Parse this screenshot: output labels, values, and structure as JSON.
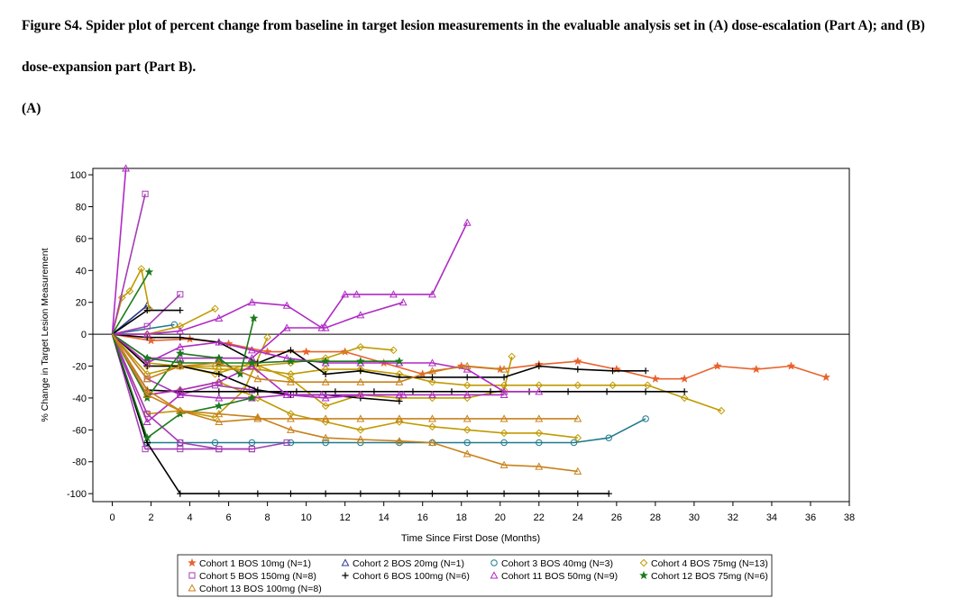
{
  "figure": {
    "caption": "Figure S4. Spider plot of percent change from baseline in target lesion measurements in the evaluable analysis set in (A) dose-escalation (Part A); and (B) dose-expansion part (Part B).",
    "panel_label": "(A)"
  },
  "chart_data": {
    "type": "line",
    "title": "",
    "xlabel": "Time Since First Dose (Months)",
    "ylabel": "% Change in Target Lesion Measurement",
    "xlim": [
      -1,
      38
    ],
    "ylim": [
      -105,
      104
    ],
    "xticks": [
      0,
      2,
      4,
      6,
      8,
      10,
      12,
      14,
      16,
      18,
      20,
      22,
      24,
      26,
      28,
      30,
      32,
      34,
      36,
      38
    ],
    "yticks": [
      100,
      80,
      60,
      40,
      20,
      0,
      -20,
      -40,
      -60,
      -80,
      -100
    ],
    "reference_line_y": 0,
    "grid": false,
    "legend_position": "bottom",
    "legend": [
      {
        "label": "Cohort 1 BOS 10mg (N=1)",
        "marker": "star",
        "color": "#e8622c"
      },
      {
        "label": "Cohort 2 BOS 20mg (N=1)",
        "marker": "triangle",
        "color": "#2b3990"
      },
      {
        "label": "Cohort 3 BOS 40mg (N=3)",
        "marker": "circle",
        "color": "#1f7a8c"
      },
      {
        "label": "Cohort 4 BOS 75mg (N=13)",
        "marker": "diamond",
        "color": "#c09a00"
      },
      {
        "label": "Cohort 5 BOS 150mg (N=8)",
        "marker": "square",
        "color": "#a43cb5"
      },
      {
        "label": "Cohort 6 BOS 100mg (N=6)",
        "marker": "plus",
        "color": "#000000"
      },
      {
        "label": "Cohort 11 BOS 50mg (N=9)",
        "marker": "triangle",
        "color": "#b02ac4"
      },
      {
        "label": "Cohort 12 BOS 75mg (N=6)",
        "marker": "star",
        "color": "#1b7a1b"
      },
      {
        "label": "Cohort 13 BOS 100mg (N=8)",
        "marker": "triangle",
        "color": "#c8811a"
      }
    ],
    "series": [
      {
        "cohort": 1,
        "x": [
          0,
          2,
          4,
          6,
          8,
          10,
          12,
          14,
          16,
          18,
          20,
          22,
          24,
          26,
          28,
          29.5,
          31.2,
          33.2,
          35,
          36.8
        ],
        "y": [
          0,
          -4,
          -3,
          -6,
          -11,
          -11,
          -11,
          -18,
          -25,
          -20,
          -22,
          -19,
          -17,
          -22,
          -28,
          -28,
          -20,
          -22,
          -20,
          -27
        ]
      },
      {
        "cohort": 2,
        "x": [
          0,
          1.8
        ],
        "y": [
          0,
          18
        ]
      },
      {
        "cohort": 3,
        "x": [
          0,
          1.8,
          3.5,
          5.3,
          7.2,
          9.2,
          11,
          12.8,
          14.8,
          16.5,
          18.3,
          20.2,
          22,
          23.8,
          25.6,
          27.5
        ],
        "y": [
          0,
          -68,
          -68,
          -68,
          -68,
          -68,
          -68,
          -68,
          -68,
          -68,
          -68,
          -68,
          -68,
          -68,
          -65,
          -53
        ]
      },
      {
        "cohort": 3,
        "x": [
          0,
          3.2
        ],
        "y": [
          0,
          6
        ]
      },
      {
        "cohort": 4,
        "x": [
          0,
          0.5,
          0.9,
          1.5,
          1.9
        ],
        "y": [
          0,
          23,
          27,
          41,
          16
        ]
      },
      {
        "cohort": 4,
        "x": [
          0,
          1.8,
          3.5,
          5.3
        ],
        "y": [
          0,
          0,
          5,
          16
        ]
      },
      {
        "cohort": 4,
        "x": [
          0,
          1.8,
          3.5,
          5.5,
          7.5,
          9.2,
          11,
          12.8,
          14.8,
          16.5,
          18.3,
          20.2,
          22,
          24,
          25.8,
          27.6,
          29.5,
          31.4
        ],
        "y": [
          0,
          -18,
          -20,
          -22,
          -22,
          -25,
          -22,
          -22,
          -25,
          -30,
          -32,
          -32,
          -32,
          -32,
          -32,
          -32,
          -40,
          -48
        ]
      },
      {
        "cohort": 4,
        "x": [
          0,
          1.8,
          3.5,
          5.3,
          7.2,
          9.2,
          11,
          12.8,
          14.8,
          16.5,
          18.3,
          20.2,
          20.6
        ],
        "y": [
          0,
          -25,
          -20,
          -25,
          -18,
          -28,
          -45,
          -38,
          -40,
          -40,
          -40,
          -35,
          -14
        ]
      },
      {
        "cohort": 4,
        "x": [
          0,
          1.8,
          3.5,
          5.3,
          7.2,
          9.2,
          11,
          12.8,
          14.5
        ],
        "y": [
          0,
          -20,
          -20,
          -20,
          -20,
          -18,
          -15,
          -8,
          -10
        ]
      },
      {
        "cohort": 4,
        "x": [
          0,
          1.8,
          3.5,
          5.3,
          6.8,
          8
        ],
        "y": [
          0,
          -50,
          -48,
          -52,
          -35,
          -2
        ]
      },
      {
        "cohort": 4,
        "x": [
          0,
          1.8,
          3.5,
          5.5,
          7.5,
          9.2,
          11,
          12.8,
          14.8,
          16.5,
          18.3,
          20.2,
          22,
          24
        ],
        "y": [
          0,
          -38,
          -35,
          -30,
          -40,
          -50,
          -55,
          -60,
          -55,
          -58,
          -60,
          -62,
          -62,
          -65
        ]
      },
      {
        "cohort": 5,
        "x": [
          0,
          1.7
        ],
        "y": [
          0,
          88
        ]
      },
      {
        "cohort": 5,
        "x": [
          0,
          1.7,
          3.5,
          5.5,
          7.2,
          9
        ],
        "y": [
          0,
          -72,
          -72,
          -72,
          -72,
          -68
        ]
      },
      {
        "cohort": 5,
        "x": [
          0,
          1.8,
          3.5
        ],
        "y": [
          0,
          5,
          25
        ]
      },
      {
        "cohort": 5,
        "x": [
          0,
          1.8,
          3.5,
          5.5,
          7.2
        ],
        "y": [
          0,
          -50,
          -68,
          -72,
          -72
        ]
      },
      {
        "cohort": 5,
        "x": [
          0,
          1.8,
          3.5,
          5.3,
          7.2,
          9.2
        ],
        "y": [
          0,
          -28,
          -38,
          -32,
          -35,
          -38
        ]
      },
      {
        "cohort": 6,
        "x": [
          0,
          1.8,
          3.5,
          5.5,
          7.5,
          9.2,
          11,
          12.8,
          14.8,
          16.5,
          18.3,
          20.2,
          22,
          24,
          25.6
        ],
        "y": [
          0,
          -68,
          -100,
          -100,
          -100,
          -100,
          -100,
          -100,
          -100,
          -100,
          -100,
          -100,
          -100,
          -100,
          -100
        ]
      },
      {
        "cohort": 6,
        "x": [
          0,
          1.8,
          3.5,
          5.5,
          7.5,
          9.2,
          11,
          12.8,
          14.8,
          16.5,
          18.3,
          20.2,
          22,
          24,
          25.8,
          27.5
        ],
        "y": [
          0,
          -2,
          -2,
          -5,
          -18,
          -10,
          -25,
          -23,
          -27,
          -27,
          -27,
          -27,
          -20,
          -22,
          -23,
          -23
        ]
      },
      {
        "cohort": 6,
        "x": [
          0,
          1.8,
          3.5,
          5.5,
          7.5,
          9.2,
          11,
          12.8,
          14.8
        ],
        "y": [
          0,
          -20,
          -20,
          -25,
          -35,
          -38,
          -38,
          -40,
          -42
        ]
      },
      {
        "cohort": 6,
        "x": [
          0,
          1.8,
          3.5,
          5.5,
          7.5,
          9.5,
          11.5,
          13.5,
          15.5,
          17.5,
          19.5,
          21.5,
          23.5,
          25.5,
          27.5,
          29.5
        ],
        "y": [
          0,
          -35,
          -36,
          -36,
          -36,
          -36,
          -36,
          -36,
          -36,
          -36,
          -36,
          -36,
          -36,
          -36,
          -36,
          -36
        ]
      },
      {
        "cohort": 6,
        "x": [
          0,
          1.8,
          3.5
        ],
        "y": [
          0,
          15,
          15
        ]
      },
      {
        "cohort": 11,
        "x": [
          0,
          0.7
        ],
        "y": [
          0,
          104
        ]
      },
      {
        "cohort": 11,
        "x": [
          0,
          1.8,
          3.5,
          5.5,
          7.2,
          9,
          10.8,
          12,
          12.6,
          14.5,
          16.5,
          18.3
        ],
        "y": [
          0,
          0,
          2,
          10,
          20,
          18,
          4,
          25,
          25,
          25,
          25,
          70
        ]
      },
      {
        "cohort": 11,
        "x": [
          0,
          1.8,
          3.5,
          5.5,
          7.2,
          9,
          10.8,
          12.8,
          15
        ],
        "y": [
          0,
          -55,
          -38,
          -40,
          -40,
          -38,
          -38,
          -38,
          -38
        ]
      },
      {
        "cohort": 11,
        "x": [
          0,
          1.8,
          3.5,
          5.5,
          7.2,
          9,
          11,
          12.8,
          14.8,
          16.5,
          18.3,
          20.2,
          22
        ],
        "y": [
          0,
          -18,
          -8,
          -5,
          -10,
          -15,
          -18,
          -18,
          -18,
          -18,
          -22,
          -36,
          -36
        ]
      },
      {
        "cohort": 11,
        "x": [
          0,
          1.8,
          3.5,
          5.5,
          7.2,
          9,
          11,
          12.8,
          14.8,
          16.5,
          18.3,
          20.2
        ],
        "y": [
          0,
          -38,
          -35,
          -30,
          -20,
          -38,
          -40,
          -38,
          -38,
          -38,
          -38,
          -38
        ]
      },
      {
        "cohort": 11,
        "x": [
          0,
          1.8,
          3.5,
          5.5,
          7.2,
          9,
          11,
          12.8,
          15
        ],
        "y": [
          0,
          -15,
          -15,
          -15,
          -15,
          4,
          4,
          12,
          20
        ]
      },
      {
        "cohort": 12,
        "x": [
          0,
          1.8,
          3.5,
          5.5,
          7.2
        ],
        "y": [
          0,
          -65,
          -50,
          -45,
          -40
        ]
      },
      {
        "cohort": 12,
        "x": [
          0,
          1.9
        ],
        "y": [
          0,
          39
        ]
      },
      {
        "cohort": 12,
        "x": [
          0,
          1.8,
          3.5,
          5.5,
          6.6,
          7.3
        ],
        "y": [
          0,
          -40,
          -12,
          -15,
          -25,
          10
        ]
      },
      {
        "cohort": 12,
        "x": [
          0,
          1.8,
          3.5,
          5.5,
          7.2,
          9.2,
          11,
          12.8,
          14.8
        ],
        "y": [
          0,
          -15,
          -18,
          -18,
          -18,
          -17,
          -17,
          -17,
          -17
        ]
      },
      {
        "cohort": 13,
        "x": [
          0,
          1.8,
          3.5,
          5.5,
          7.5,
          9.2,
          11,
          12.8,
          14.8,
          16.5,
          18.3,
          20.2,
          22,
          24
        ],
        "y": [
          0,
          -38,
          -48,
          -55,
          -53,
          -53,
          -53,
          -53,
          -53,
          -53,
          -53,
          -53,
          -53,
          -53
        ]
      },
      {
        "cohort": 13,
        "x": [
          0,
          1.8,
          3.5,
          5.5,
          7.5,
          9.2,
          11,
          12.8,
          14.8,
          16.5,
          18.3,
          20.2,
          22,
          24
        ],
        "y": [
          0,
          -35,
          -48,
          -50,
          -52,
          -60,
          -65,
          -66,
          -67,
          -68,
          -75,
          -82,
          -83,
          -86
        ]
      },
      {
        "cohort": 13,
        "x": [
          0,
          1.8,
          3.5,
          5.5,
          7.5,
          9.2,
          11,
          12.8,
          14.8,
          16.5,
          18.3,
          20.2
        ],
        "y": [
          0,
          -28,
          -20,
          -18,
          -28,
          -30,
          -30,
          -30,
          -30,
          -23,
          -20,
          -22
        ]
      }
    ]
  }
}
